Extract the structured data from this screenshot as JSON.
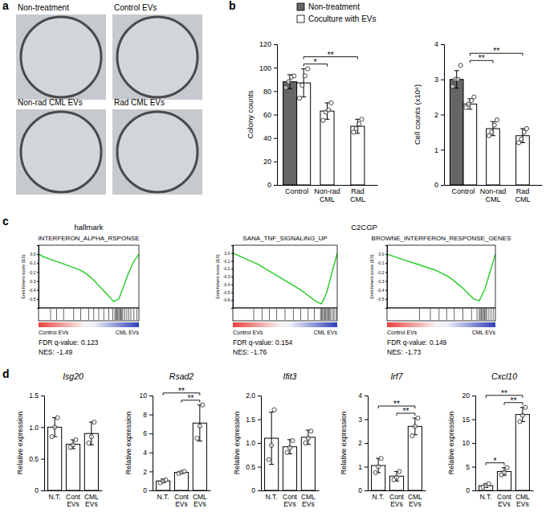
{
  "panel_labels": [
    "a",
    "b",
    "c",
    "d"
  ],
  "chart_data": [
    {
      "type": "image",
      "labels": [
        "Non-treatment",
        "Control EVs",
        "Non-rad CML EVs",
        "Rad CML EVs"
      ]
    },
    {
      "type": "bar",
      "ylabel": "Colony counts",
      "categories": [
        "Control",
        "Non-rad\nCML",
        "Rad\nCML"
      ],
      "ylim": [
        0,
        120
      ],
      "yticks": [
        0,
        20,
        40,
        60,
        80,
        100,
        120
      ],
      "legend": "top",
      "series": [
        {
          "name": "Non-treatment",
          "color": "#666666",
          "values": [
            88,
            null,
            null
          ],
          "errors": [
            6,
            null,
            null
          ],
          "points": [
            [
              83,
              88,
              92,
              93
            ],
            null,
            null
          ]
        },
        {
          "name": "Coculture with EVs",
          "color": "#ffffff",
          "values": [
            87,
            63,
            50
          ],
          "errors": [
            12,
            7,
            6
          ],
          "points": [
            [
              74,
              85,
              93,
              99
            ],
            [
              55,
              62,
              64,
              70
            ],
            [
              45,
              48,
              52,
              56
            ]
          ]
        }
      ],
      "significance": [
        {
          "groups": [
            0,
            1
          ],
          "label": "*"
        },
        {
          "groups": [
            0,
            2
          ],
          "label": "**"
        }
      ]
    },
    {
      "type": "bar",
      "ylabel": "Cell counts (x10⁶)",
      "categories": [
        "Control",
        "Non-rad\nCML",
        "Rad\nCML"
      ],
      "ylim": [
        0,
        4
      ],
      "yticks": [
        0,
        1,
        2,
        3,
        4
      ],
      "series": [
        {
          "color": "#666666",
          "values": [
            3.0,
            null,
            null
          ],
          "errors": [
            0.25,
            null,
            null
          ],
          "points": [
            [
              2.8,
              3.0,
              3.0,
              3.4
            ],
            null,
            null
          ]
        },
        {
          "color": "#ffffff",
          "values": [
            2.3,
            1.6,
            1.4
          ],
          "errors": [
            0.15,
            0.2,
            0.2
          ],
          "points": [
            [
              2.2,
              2.3,
              2.4,
              2.5
            ],
            [
              1.4,
              1.5,
              1.7,
              1.85
            ],
            [
              1.2,
              1.3,
              1.5,
              1.6
            ]
          ]
        }
      ],
      "significance": [
        {
          "groups": [
            0,
            1
          ],
          "label": "**"
        },
        {
          "groups": [
            0,
            2
          ],
          "label": "**"
        }
      ]
    },
    {
      "type": "line",
      "collection": "hallmark",
      "title": "INTERFERON_ALPHA_RSPONSE",
      "ylabel": "Enrichment score (ES)",
      "xlim": [
        0,
        100
      ],
      "ylim": [
        -0.6,
        0.1
      ],
      "yticks": [
        -0.5,
        -0.4,
        -0.3,
        -0.2,
        -0.1,
        {
          "value": 0,
          "label": "0.0"
        }
      ],
      "tick_labels": "y",
      "x": [
        0,
        5,
        10,
        15,
        20,
        25,
        30,
        35,
        40,
        45,
        50,
        55,
        60,
        65,
        70,
        75,
        80,
        85,
        90,
        95,
        100
      ],
      "values": [
        0,
        -0.03,
        -0.05,
        -0.07,
        -0.09,
        -0.11,
        -0.13,
        -0.15,
        -0.17,
        -0.2,
        -0.24,
        -0.29,
        -0.35,
        -0.41,
        -0.47,
        -0.53,
        -0.5,
        -0.35,
        -0.2,
        -0.08,
        0
      ],
      "color": "#22cc22",
      "hits": [
        12,
        18,
        25,
        35,
        42,
        50,
        55,
        60,
        65,
        70,
        74,
        76,
        77,
        78,
        79,
        80,
        81,
        82,
        83,
        84,
        86,
        88,
        90,
        92,
        95,
        98
      ],
      "phenotypes": [
        "Control EVs",
        "CML EVs"
      ],
      "stats": [
        {
          "label": "FDR q-value:",
          "value": 0.123
        },
        {
          "label": "NES:",
          "value": -1.49
        }
      ]
    },
    {
      "type": "line",
      "collection": "C2CGP",
      "title": "SANA_TNF_SIGNALING_UP",
      "ylabel": "Enrichment score (ES)",
      "xlim": [
        0,
        100
      ],
      "ylim": [
        -0.7,
        0.1
      ],
      "yticks": [
        -0.6,
        -0.5,
        -0.4,
        -0.3,
        -0.2,
        -0.1,
        {
          "value": 0,
          "label": "0.0"
        }
      ],
      "tick_labels": "y",
      "x": [
        0,
        5,
        10,
        15,
        20,
        25,
        30,
        35,
        40,
        45,
        50,
        55,
        60,
        65,
        70,
        75,
        80,
        85,
        90,
        95,
        100
      ],
      "values": [
        0,
        -0.03,
        -0.06,
        -0.09,
        -0.12,
        -0.15,
        -0.19,
        -0.23,
        -0.27,
        -0.31,
        -0.35,
        -0.39,
        -0.43,
        -0.47,
        -0.52,
        -0.57,
        -0.62,
        -0.65,
        -0.5,
        -0.25,
        0
      ],
      "color": "#22cc22",
      "hits": [
        20,
        28,
        35,
        42,
        50,
        58,
        65,
        72,
        78,
        84,
        85,
        86,
        87,
        88,
        89,
        90,
        91,
        92,
        93,
        94,
        96,
        97,
        99
      ],
      "phenotypes": [
        "Control EVs",
        "CML EVs"
      ],
      "stats": [
        {
          "label": "FDR q-value:",
          "value": 0.154
        },
        {
          "label": "NES:",
          "value": -1.76
        }
      ]
    },
    {
      "type": "line",
      "title": "BROWNE_INTERFERON_RESPONSE_GENES",
      "ylabel": "Enrichment score (ES)",
      "xlim": [
        0,
        100
      ],
      "ylim": [
        -0.6,
        0.1
      ],
      "yticks": [
        -0.5,
        -0.4,
        -0.3,
        -0.2,
        -0.1,
        {
          "value": 0,
          "label": "0.0"
        }
      ],
      "tick_labels": "y",
      "x": [
        0,
        5,
        10,
        15,
        20,
        25,
        30,
        35,
        40,
        45,
        50,
        55,
        60,
        65,
        70,
        75,
        80,
        85,
        90,
        95,
        100
      ],
      "values": [
        0,
        -0.02,
        -0.04,
        -0.06,
        -0.08,
        -0.1,
        -0.12,
        -0.14,
        -0.16,
        -0.18,
        -0.21,
        -0.24,
        -0.28,
        -0.33,
        -0.38,
        -0.44,
        -0.5,
        -0.52,
        -0.4,
        -0.2,
        0
      ],
      "color": "#22cc22",
      "hits": [
        30,
        40,
        48,
        55,
        62,
        70,
        78,
        83,
        85,
        86,
        87,
        88,
        89,
        90,
        91,
        92,
        94,
        96,
        98
      ],
      "phenotypes": [
        "Control EVs",
        "CML EVs"
      ],
      "stats": [
        {
          "label": "FDR q-value:",
          "value": 0.149
        },
        {
          "label": "NES:",
          "value": -1.73
        }
      ]
    },
    {
      "type": "bar",
      "title": "Isg20",
      "ylabel": "Relative expression",
      "categories": [
        "N.T.",
        "Cont\nEVs",
        "CML\nEVs"
      ],
      "ylim": [
        0,
        1.5
      ],
      "yticks": [
        0,
        0.5,
        {
          "value": 1,
          "label": "1.0"
        },
        1.5
      ],
      "series": [
        {
          "color": "#ffffff",
          "values": [
            1.0,
            0.73,
            0.9
          ],
          "errors": [
            0.15,
            0.07,
            0.18
          ],
          "points": [
            [
              0.85,
              1.0,
              1.15
            ],
            [
              0.68,
              0.72,
              0.8
            ],
            [
              0.75,
              0.85,
              1.08
            ]
          ]
        }
      ]
    },
    {
      "type": "bar",
      "title": "Rsad2",
      "ylabel": "Relative expression",
      "categories": [
        "N.T.",
        "Cont\nEVs",
        "CML\nEVs"
      ],
      "ylim": [
        0,
        10
      ],
      "yticks": [
        0,
        2,
        4,
        6,
        8,
        10
      ],
      "series": [
        {
          "color": "#ffffff",
          "values": [
            1.0,
            1.9,
            7.1
          ],
          "errors": [
            0.2,
            0.1,
            1.9
          ],
          "points": [
            [
              0.8,
              1.0,
              1.1
            ],
            [
              1.8,
              1.9,
              2.0
            ],
            [
              5.5,
              6.8,
              9.0
            ]
          ]
        }
      ],
      "significance": [
        {
          "groups": [
            0,
            2
          ],
          "label": "**"
        },
        {
          "groups": [
            1,
            2
          ],
          "label": "**"
        }
      ]
    },
    {
      "type": "bar",
      "title": "Ifit3",
      "ylabel": "Relative expression",
      "categories": [
        "N.T.",
        "Cont\nEVs",
        "CML\nEVs"
      ],
      "ylim": [
        0,
        2
      ],
      "yticks": [
        0,
        0.5,
        {
          "value": 1,
          "label": "1.0"
        },
        1.5,
        {
          "value": 2,
          "label": "2.0"
        }
      ],
      "series": [
        {
          "color": "#ffffff",
          "values": [
            1.1,
            0.92,
            1.12
          ],
          "errors": [
            0.55,
            0.15,
            0.15
          ],
          "points": [
            [
              0.65,
              0.95,
              1.7
            ],
            [
              0.8,
              0.9,
              1.05
            ],
            [
              1.0,
              1.1,
              1.25
            ]
          ]
        }
      ]
    },
    {
      "type": "bar",
      "title": "Irf7",
      "ylabel": "Relative expression",
      "categories": [
        "N.T.",
        "Cont\nEVs",
        "CML\nEVs"
      ],
      "ylim": [
        0,
        4
      ],
      "yticks": [
        0,
        1,
        2,
        3,
        4
      ],
      "series": [
        {
          "color": "#ffffff",
          "values": [
            1.05,
            0.6,
            2.7
          ],
          "errors": [
            0.3,
            0.2,
            0.35
          ],
          "points": [
            [
              0.75,
              1.0,
              1.35
            ],
            [
              0.45,
              0.55,
              0.8
            ],
            [
              2.3,
              2.7,
              3.05
            ]
          ]
        }
      ],
      "significance": [
        {
          "groups": [
            0,
            2
          ],
          "label": "**"
        },
        {
          "groups": [
            1,
            2
          ],
          "label": "**"
        }
      ]
    },
    {
      "type": "bar",
      "title": "Cxcl10",
      "ylabel": "Relative expression",
      "categories": [
        "N.T.",
        "Cont\nEVs",
        "CML\nEVs"
      ],
      "ylim": [
        0,
        20
      ],
      "yticks": [
        0,
        5,
        10,
        15,
        20
      ],
      "series": [
        {
          "color": "#ffffff",
          "values": [
            1.0,
            4.0,
            16
          ],
          "errors": [
            0.4,
            0.8,
            1.5
          ],
          "points": [
            [
              0.7,
              1.0,
              1.4
            ],
            [
              3.3,
              3.8,
              4.8
            ],
            [
              14.5,
              15.8,
              17.5
            ]
          ]
        }
      ],
      "significance": [
        {
          "groups": [
            0,
            1
          ],
          "label": "*"
        },
        {
          "groups": [
            0,
            2
          ],
          "label": "**"
        },
        {
          "groups": [
            1,
            2
          ],
          "label": "**"
        }
      ]
    }
  ]
}
